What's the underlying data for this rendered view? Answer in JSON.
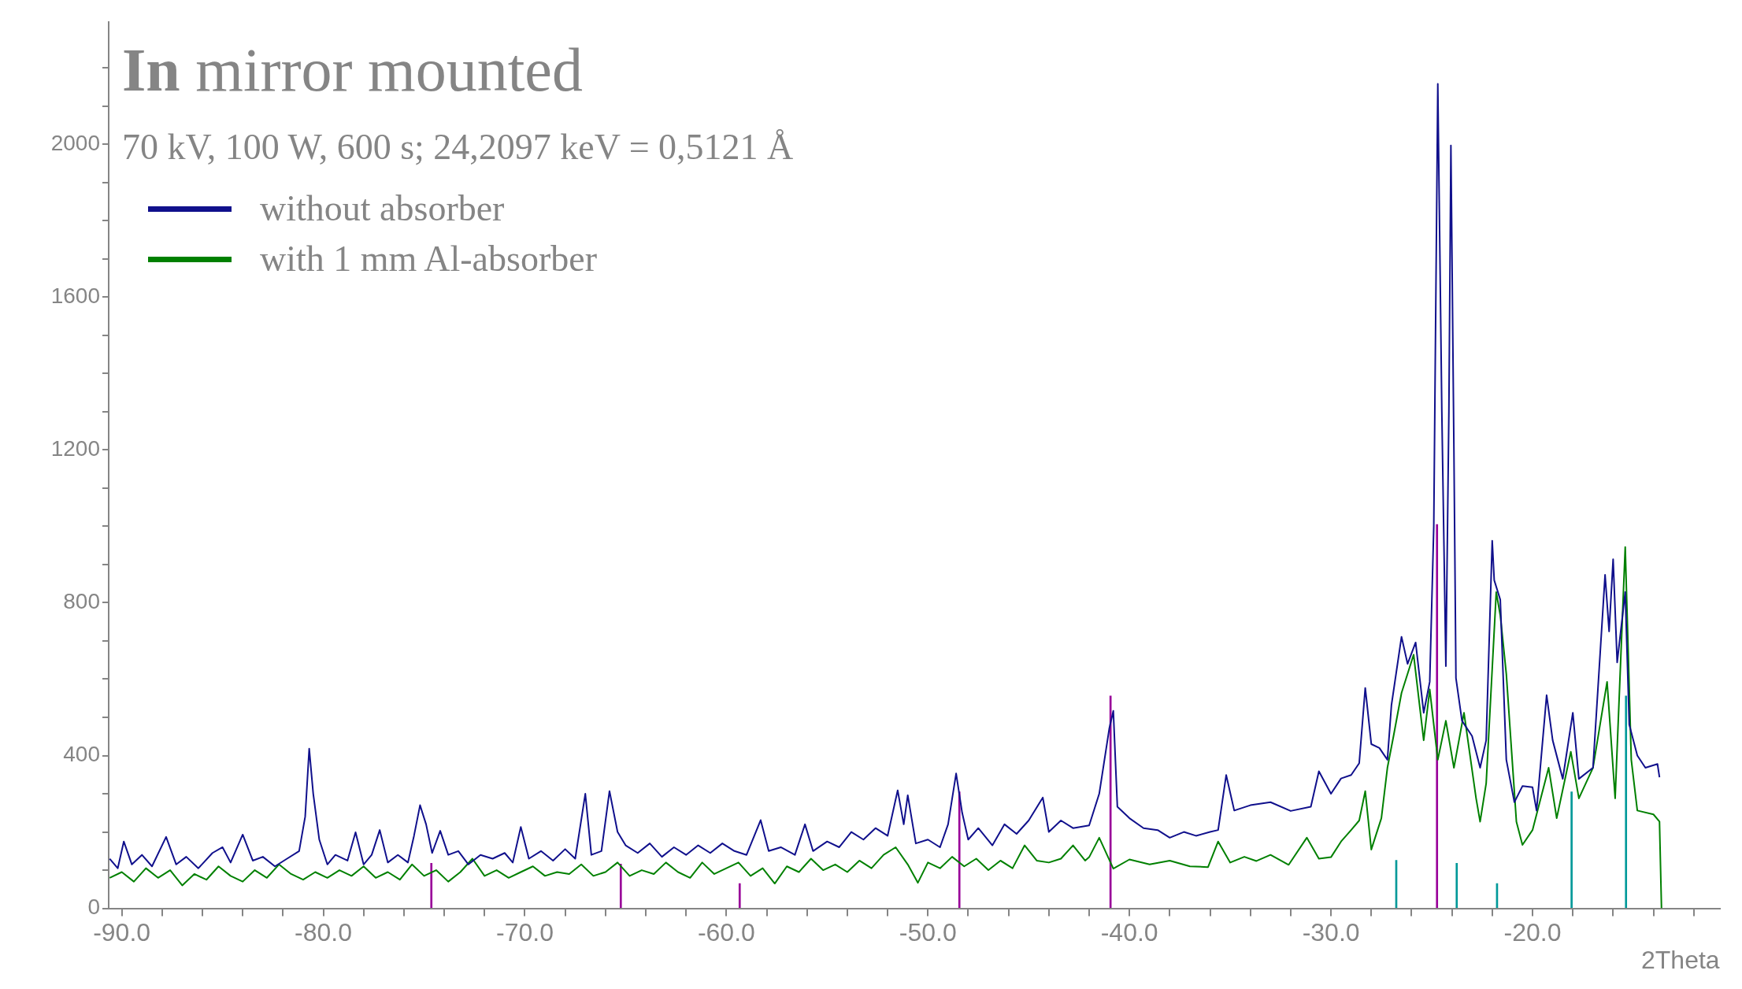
{
  "chart_data": {
    "type": "line",
    "title": "In mirror mounted",
    "subtitle": "70 kV, 100 W, 600 s; 24,2097 keV = 0,5121 Å",
    "xlabel": "2Theta",
    "xlim": [
      -90.65,
      -10.7
    ],
    "ylim": [
      0,
      2320
    ],
    "xticks": [
      {
        "value": -90,
        "label": "-90.0"
      },
      {
        "value": -88,
        "label": null
      },
      {
        "value": -86,
        "label": null
      },
      {
        "value": -84,
        "label": null
      },
      {
        "value": -82,
        "label": null
      },
      {
        "value": -80,
        "label": "-80.0"
      },
      {
        "value": -78,
        "label": null
      },
      {
        "value": -76,
        "label": null
      },
      {
        "value": -74,
        "label": null
      },
      {
        "value": -72,
        "label": null
      },
      {
        "value": -70,
        "label": "-70.0"
      },
      {
        "value": -68,
        "label": null
      },
      {
        "value": -66,
        "label": null
      },
      {
        "value": -64,
        "label": null
      },
      {
        "value": -62,
        "label": null
      },
      {
        "value": -60,
        "label": "-60.0"
      },
      {
        "value": -58,
        "label": null
      },
      {
        "value": -56,
        "label": null
      },
      {
        "value": -54,
        "label": null
      },
      {
        "value": -52,
        "label": null
      },
      {
        "value": -50,
        "label": "-50.0"
      },
      {
        "value": -48,
        "label": null
      },
      {
        "value": -46,
        "label": null
      },
      {
        "value": -44,
        "label": null
      },
      {
        "value": -42,
        "label": null
      },
      {
        "value": -40,
        "label": "-40.0"
      },
      {
        "value": -38,
        "label": null
      },
      {
        "value": -36,
        "label": null
      },
      {
        "value": -34,
        "label": null
      },
      {
        "value": -32,
        "label": null
      },
      {
        "value": -30,
        "label": "-30.0"
      },
      {
        "value": -28,
        "label": null
      },
      {
        "value": -26,
        "label": null
      },
      {
        "value": -24,
        "label": null
      },
      {
        "value": -22,
        "label": null
      },
      {
        "value": -20,
        "label": "-20.0"
      },
      {
        "value": -18,
        "label": null
      },
      {
        "value": -16,
        "label": null
      },
      {
        "value": -14,
        "label": null
      },
      {
        "value": -12,
        "label": null
      }
    ],
    "yticks": [
      0,
      {
        "value": 100,
        "label": null
      },
      {
        "value": 200,
        "label": null
      },
      {
        "value": 300,
        "label": null
      },
      400,
      {
        "value": 500,
        "label": null
      },
      {
        "value": 600,
        "label": null
      },
      {
        "value": 700,
        "label": null
      },
      800,
      {
        "value": 900,
        "label": null
      },
      {
        "value": 1000,
        "label": null
      },
      {
        "value": 1100,
        "label": null
      },
      1200,
      {
        "value": 1300,
        "label": null
      },
      {
        "value": 1400,
        "label": null
      },
      {
        "value": 1500,
        "label": null
      },
      1600,
      {
        "value": 1700,
        "label": null
      },
      {
        "value": 1800,
        "label": null
      },
      {
        "value": 1900,
        "label": null
      },
      2000,
      {
        "value": 2100,
        "label": null
      },
      {
        "value": 2200,
        "label": null
      }
    ],
    "grid": false,
    "legend": "top left",
    "marker": "none",
    "line_style": "solid",
    "series": [
      {
        "name": "without absorber",
        "color": "#10108c",
        "x": [
          -90.6,
          -90.2,
          -89.9,
          -89.5,
          -89.0,
          -88.5,
          -87.8,
          -87.3,
          -86.8,
          -86.2,
          -85.5,
          -85.0,
          -84.6,
          -84.0,
          -83.5,
          -83.0,
          -82.4,
          -81.8,
          -81.2,
          -80.9,
          -80.7,
          -80.5,
          -80.2,
          -79.8,
          -79.4,
          -78.8,
          -78.4,
          -78.0,
          -77.6,
          -77.2,
          -76.8,
          -76.3,
          -75.8,
          -75.5,
          -75.2,
          -74.9,
          -74.6,
          -74.2,
          -73.8,
          -73.3,
          -72.8,
          -72.2,
          -71.6,
          -71.0,
          -70.6,
          -70.2,
          -69.8,
          -69.2,
          -68.6,
          -68.0,
          -67.5,
          -67.0,
          -66.7,
          -66.2,
          -65.8,
          -65.4,
          -65.0,
          -64.4,
          -63.8,
          -63.2,
          -62.6,
          -62.0,
          -61.4,
          -60.8,
          -60.2,
          -59.6,
          -59.0,
          -58.3,
          -57.9,
          -57.3,
          -56.6,
          -56.1,
          -55.7,
          -55.0,
          -54.4,
          -53.8,
          -53.2,
          -52.6,
          -52.0,
          -51.5,
          -51.2,
          -51.0,
          -50.6,
          -50.0,
          -49.4,
          -49.0,
          -48.6,
          -48.3,
          -48.0,
          -47.5,
          -46.8,
          -46.2,
          -45.6,
          -45.0,
          -44.3,
          -44.0,
          -43.4,
          -42.8,
          -42.0,
          -41.5,
          -41.0,
          -40.8,
          -40.6,
          -40.0,
          -39.3,
          -38.6,
          -38.0,
          -37.3,
          -36.7,
          -36.0,
          -35.6,
          -35.2,
          -34.8,
          -34.0,
          -33.0,
          -32.0,
          -31.0,
          -30.6,
          -30.0,
          -29.5,
          -29.0,
          -28.6,
          -28.3,
          -28.0,
          -27.6,
          -27.2,
          -27.0,
          -26.5,
          -26.2,
          -25.8,
          -25.4,
          -25.1,
          -24.9,
          -24.7,
          -24.5,
          -24.3,
          -24.15,
          -24.05,
          -23.9,
          -23.8,
          -23.5,
          -23.0,
          -22.6,
          -22.3,
          -22.0,
          -21.9,
          -21.6,
          -21.3,
          -20.9,
          -20.5,
          -20.0,
          -19.8,
          -19.3,
          -19.0,
          -18.5,
          -18.0,
          -17.7,
          -17.0,
          -16.4,
          -16.2,
          -16.0,
          -15.8,
          -15.4,
          -15.2,
          -14.8,
          -14.4,
          -13.8,
          -13.7
        ],
        "values": [
          130,
          105,
          175,
          115,
          140,
          110,
          187,
          115,
          135,
          105,
          145,
          160,
          120,
          193,
          125,
          135,
          110,
          130,
          150,
          240,
          418,
          300,
          180,
          115,
          140,
          125,
          199,
          115,
          140,
          205,
          120,
          140,
          120,
          190,
          270,
          220,
          145,
          203,
          140,
          150,
          115,
          140,
          130,
          145,
          120,
          213,
          130,
          150,
          125,
          155,
          130,
          300,
          140,
          150,
          307,
          200,
          165,
          145,
          170,
          135,
          160,
          140,
          165,
          145,
          170,
          150,
          140,
          231,
          150,
          160,
          140,
          220,
          150,
          175,
          160,
          200,
          180,
          210,
          190,
          309,
          220,
          296,
          170,
          180,
          160,
          220,
          353,
          250,
          180,
          210,
          165,
          220,
          195,
          230,
          290,
          200,
          230,
          210,
          217,
          300,
          471,
          517,
          266,
          236,
          210,
          205,
          185,
          200,
          190,
          200,
          205,
          349,
          256,
          270,
          278,
          255,
          266,
          359,
          300,
          340,
          349,
          380,
          577,
          430,
          420,
          389,
          532,
          711,
          640,
          696,
          512,
          593,
          1000,
          2158,
          1300,
          634,
          1300,
          1997,
          1200,
          603,
          491,
          451,
          368,
          440,
          962,
          859,
          808,
          389,
          278,
          320,
          317,
          256,
          558,
          440,
          339,
          512,
          339,
          368,
          873,
          725,
          914,
          644,
          828,
          481,
          400,
          368,
          378,
          343
        ]
      },
      {
        "name": "with 1 mm Al-absorber",
        "color": "#008000",
        "x": [
          -90.6,
          -90.0,
          -89.4,
          -88.8,
          -88.2,
          -87.6,
          -87.0,
          -86.4,
          -85.8,
          -85.2,
          -84.6,
          -84.0,
          -83.4,
          -82.8,
          -82.2,
          -81.6,
          -81.0,
          -80.4,
          -79.8,
          -79.2,
          -78.6,
          -78.0,
          -77.4,
          -76.8,
          -76.2,
          -75.6,
          -75.0,
          -74.4,
          -73.8,
          -73.2,
          -72.6,
          -72.0,
          -71.4,
          -70.8,
          -70.2,
          -69.6,
          -69.0,
          -68.4,
          -67.8,
          -67.2,
          -66.6,
          -66.0,
          -65.4,
          -64.8,
          -64.2,
          -63.6,
          -63.0,
          -62.4,
          -61.8,
          -61.2,
          -60.6,
          -60.0,
          -59.4,
          -58.8,
          -58.2,
          -57.6,
          -57.0,
          -56.4,
          -55.8,
          -55.2,
          -54.6,
          -54.0,
          -53.4,
          -52.8,
          -52.2,
          -51.6,
          -51.0,
          -50.5,
          -50.0,
          -49.4,
          -48.8,
          -48.2,
          -47.6,
          -47.0,
          -46.4,
          -45.8,
          -45.2,
          -44.6,
          -44.0,
          -43.4,
          -42.8,
          -42.2,
          -42.0,
          -41.5,
          -40.8,
          -40.0,
          -39.0,
          -38.0,
          -37.0,
          -36.1,
          -35.6,
          -35.0,
          -34.3,
          -33.7,
          -33.0,
          -32.1,
          -31.2,
          -30.6,
          -30.0,
          -29.5,
          -29.0,
          -28.6,
          -28.3,
          -28.0,
          -27.5,
          -27.2,
          -26.9,
          -26.5,
          -25.9,
          -25.4,
          -25.1,
          -24.7,
          -24.3,
          -23.9,
          -23.4,
          -22.8,
          -22.6,
          -22.3,
          -21.8,
          -21.6,
          -21.3,
          -20.8,
          -20.5,
          -20.0,
          -19.2,
          -18.8,
          -18.1,
          -17.7,
          -17.0,
          -16.3,
          -15.9,
          -15.4,
          -15.1,
          -14.8,
          -14.0,
          -13.7,
          -13.6
        ],
        "values": [
          80,
          95,
          70,
          105,
          80,
          100,
          60,
          90,
          75,
          110,
          85,
          70,
          100,
          80,
          115,
          90,
          75,
          95,
          80,
          100,
          85,
          110,
          80,
          95,
          75,
          115,
          85,
          100,
          70,
          95,
          130,
          85,
          100,
          80,
          95,
          110,
          85,
          95,
          90,
          115,
          85,
          95,
          120,
          85,
          100,
          90,
          120,
          95,
          80,
          120,
          90,
          105,
          120,
          85,
          105,
          65,
          110,
          95,
          130,
          100,
          115,
          95,
          125,
          105,
          140,
          160,
          115,
          67,
          120,
          105,
          135,
          110,
          130,
          100,
          125,
          105,
          165,
          125,
          120,
          130,
          165,
          125,
          134,
          185,
          104,
          128,
          115,
          125,
          110,
          108,
          175,
          120,
          135,
          124,
          140,
          114,
          185,
          130,
          134,
          175,
          205,
          230,
          307,
          154,
          236,
          368,
          450,
          564,
          664,
          440,
          573,
          389,
          491,
          368,
          512,
          288,
          227,
          327,
          828,
          767,
          613,
          227,
          166,
          205,
          368,
          236,
          410,
          288,
          368,
          593,
          288,
          946,
          389,
          256,
          246,
          227,
          0
        ]
      },
      {
        "type": "bar",
        "color": "#990099",
        "x": [
          -74.6,
          -65.2,
          -59.3,
          -48.4,
          -40.9,
          -24.7
        ],
        "values": [
          118,
          116,
          65,
          305,
          556,
          1005
        ]
      },
      {
        "type": "bar",
        "color": "#009999",
        "x": [
          -26.8,
          -23.8,
          -21.8,
          -18.1,
          -15.4
        ],
        "values": [
          126,
          118,
          65,
          305,
          556
        ]
      }
    ]
  }
}
